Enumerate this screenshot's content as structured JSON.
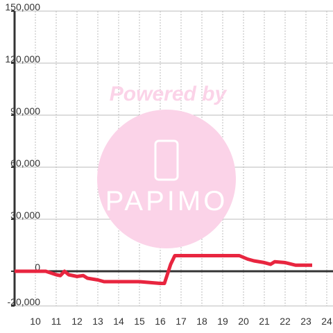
{
  "chart_data": {
    "type": "line",
    "watermark": [
      "Powered by",
      "PAPIMO"
    ],
    "x": [
      9,
      10.5,
      11,
      11.2,
      11.4,
      11.6,
      12,
      12.3,
      12.5,
      13,
      13.3,
      15,
      15.5,
      16,
      16.2,
      16.5,
      16.7,
      19.8,
      20.2,
      20.5,
      21,
      21.3,
      21.5,
      22,
      22.5,
      23.3
    ],
    "series": [
      {
        "color": "#e8253f",
        "values": [
          0,
          0,
          -2000,
          -2500,
          0,
          -2000,
          -3000,
          -2500,
          -4000,
          -5000,
          -6000,
          -6000,
          -6500,
          -7000,
          -7000,
          4000,
          9000,
          9000,
          7000,
          6000,
          5000,
          4000,
          5500,
          5000,
          3500,
          3500
        ]
      }
    ],
    "xlim": [
      9,
      24.3
    ],
    "xticks": [
      10,
      11,
      12,
      13,
      14,
      15,
      16,
      17,
      18,
      19,
      20,
      21,
      22,
      23,
      24
    ],
    "ylim": [
      -20000,
      150000
    ],
    "yticks": [
      {
        "value": -20000,
        "label": "-20,000"
      },
      0,
      {
        "value": 30000,
        "label": "30,000"
      },
      {
        "value": 60000,
        "label": "60,000"
      },
      {
        "value": 90000,
        "label": "90,000"
      },
      {
        "value": 120000,
        "label": "120,000"
      },
      {
        "value": 150000,
        "label": "150,000"
      }
    ],
    "grid": true
  }
}
